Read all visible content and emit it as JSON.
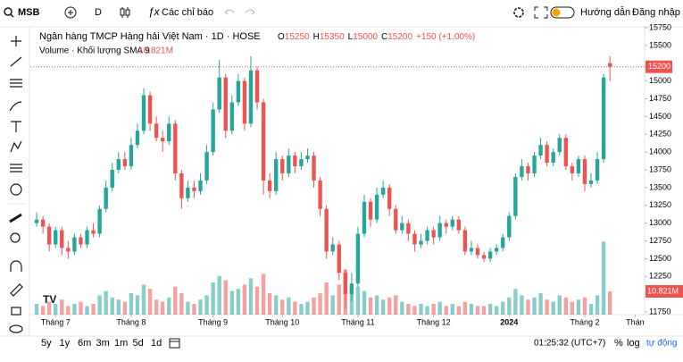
{
  "toolbar": {
    "symbol": "MSB",
    "interval": "D",
    "indicators": "Các chỉ báo",
    "guide": "Hướng dẫn",
    "login": "Đăng nhập"
  },
  "chart_data": {
    "type": "candlestick",
    "title": "Ngân hàng TMCP Hàng hải Việt Nam · 1D · HOSE",
    "ohlc_labels": [
      "O",
      "H",
      "L",
      "C"
    ],
    "change_label": "+150 (+1.00%)",
    "up_color": "#26a69a",
    "down_color": "#ef5350",
    "ohlc": [
      [
        13000,
        13150,
        12950,
        13050
      ],
      [
        13050,
        13100,
        12850,
        12950
      ],
      [
        12950,
        13000,
        12600,
        12700
      ],
      [
        12700,
        12950,
        12650,
        12900
      ],
      [
        12900,
        12950,
        12550,
        12650
      ],
      [
        12650,
        12750,
        12500,
        12600
      ],
      [
        12600,
        12850,
        12550,
        12800
      ],
      [
        12800,
        12850,
        12650,
        12700
      ],
      [
        12700,
        12950,
        12650,
        12900
      ],
      [
        12900,
        13000,
        12800,
        12850
      ],
      [
        12850,
        13250,
        12800,
        13200
      ],
      [
        13200,
        13600,
        13150,
        13500
      ],
      [
        13500,
        13850,
        13450,
        13750
      ],
      [
        13750,
        14000,
        13700,
        13900
      ],
      [
        13900,
        14000,
        13750,
        13800
      ],
      [
        13800,
        14200,
        13750,
        14100
      ],
      [
        14100,
        14400,
        14050,
        14300
      ],
      [
        14300,
        14900,
        14250,
        14800
      ],
      [
        14800,
        14850,
        14300,
        14400
      ],
      [
        14400,
        14500,
        14150,
        14200
      ],
      [
        14200,
        14300,
        14000,
        14150
      ],
      [
        14150,
        14500,
        14100,
        14400
      ],
      [
        14400,
        14450,
        13600,
        13700
      ],
      [
        13700,
        13750,
        13200,
        13350
      ],
      [
        13350,
        13600,
        13300,
        13500
      ],
      [
        13500,
        13600,
        13350,
        13450
      ],
      [
        13450,
        13700,
        13400,
        13600
      ],
      [
        13600,
        14100,
        13550,
        14000
      ],
      [
        14000,
        14700,
        13950,
        14600
      ],
      [
        14600,
        15300,
        14550,
        15050
      ],
      [
        15050,
        15100,
        14200,
        14300
      ],
      [
        14300,
        14800,
        14250,
        14700
      ],
      [
        14700,
        15100,
        14650,
        15000
      ],
      [
        15000,
        15050,
        14300,
        14400
      ],
      [
        14400,
        15350,
        14350,
        15150
      ],
      [
        15150,
        15200,
        14600,
        14700
      ],
      [
        14700,
        14750,
        13400,
        13600
      ],
      [
        13600,
        13700,
        13350,
        13450
      ],
      [
        13450,
        14000,
        13400,
        13900
      ],
      [
        13900,
        13950,
        13600,
        13700
      ],
      [
        13700,
        14050,
        13650,
        13950
      ],
      [
        13950,
        14000,
        13700,
        13800
      ],
      [
        13800,
        14000,
        13750,
        13900
      ],
      [
        13900,
        14050,
        13850,
        13950
      ],
      [
        13950,
        14000,
        13500,
        13600
      ],
      [
        13600,
        13650,
        13100,
        13200
      ],
      [
        13200,
        13250,
        12500,
        12600
      ],
      [
        12600,
        12800,
        12550,
        12700
      ],
      [
        12700,
        12750,
        12200,
        12300
      ],
      [
        12300,
        12350,
        11800,
        12000
      ],
      [
        12000,
        12300,
        11900,
        12150
      ],
      [
        12150,
        12950,
        12100,
        12850
      ],
      [
        12850,
        13400,
        12800,
        13300
      ],
      [
        13300,
        13350,
        12950,
        13050
      ],
      [
        13050,
        13500,
        13000,
        13400
      ],
      [
        13400,
        13600,
        13350,
        13500
      ],
      [
        13500,
        13550,
        13100,
        13200
      ],
      [
        13200,
        13250,
        12850,
        12900
      ],
      [
        12900,
        13100,
        12850,
        13000
      ],
      [
        13000,
        13050,
        12750,
        12850
      ],
      [
        12850,
        12900,
        12600,
        12700
      ],
      [
        12700,
        12850,
        12650,
        12750
      ],
      [
        12750,
        12950,
        12700,
        12900
      ],
      [
        12900,
        12950,
        12700,
        12800
      ],
      [
        12800,
        13100,
        12750,
        13000
      ],
      [
        13000,
        13050,
        12850,
        12950
      ],
      [
        12950,
        13100,
        12900,
        13050
      ],
      [
        13050,
        13100,
        12850,
        12900
      ],
      [
        12900,
        12950,
        12550,
        12600
      ],
      [
        12600,
        12750,
        12550,
        12650
      ],
      [
        12650,
        12700,
        12500,
        12550
      ],
      [
        12550,
        12600,
        12450,
        12500
      ],
      [
        12500,
        12650,
        12450,
        12600
      ],
      [
        12600,
        12700,
        12550,
        12650
      ],
      [
        12650,
        12850,
        12600,
        12800
      ],
      [
        12800,
        13150,
        12750,
        13100
      ],
      [
        13100,
        13700,
        13050,
        13650
      ],
      [
        13650,
        13900,
        13600,
        13800
      ],
      [
        13800,
        13850,
        13600,
        13700
      ],
      [
        13700,
        14000,
        13650,
        13950
      ],
      [
        13950,
        14200,
        13900,
        14100
      ],
      [
        14100,
        14150,
        13800,
        13850
      ],
      [
        13850,
        14050,
        13800,
        14000
      ],
      [
        14000,
        14250,
        13950,
        14200
      ],
      [
        14200,
        14250,
        13750,
        13800
      ],
      [
        13800,
        13850,
        13600,
        13700
      ],
      [
        13700,
        13950,
        13650,
        13900
      ],
      [
        13900,
        13950,
        13450,
        13550
      ],
      [
        13550,
        13700,
        13500,
        13600
      ],
      [
        13600,
        14000,
        13550,
        13900
      ],
      [
        13900,
        15100,
        13850,
        15050
      ],
      [
        15250,
        15350,
        15000,
        15200
      ]
    ],
    "volume": {
      "name": "Volume · Khối lượng SMA 9",
      "last_label": "10.821M",
      "ylim": [
        0,
        40
      ],
      "values": [
        5,
        4,
        6,
        5,
        7,
        4,
        5,
        6,
        4,
        5,
        9,
        11,
        8,
        7,
        6,
        10,
        9,
        14,
        12,
        7,
        6,
        8,
        13,
        10,
        6,
        5,
        7,
        9,
        15,
        18,
        16,
        11,
        12,
        14,
        17,
        13,
        19,
        10,
        9,
        7,
        8,
        6,
        5,
        6,
        8,
        10,
        15,
        9,
        14,
        21,
        12,
        13,
        11,
        8,
        9,
        7,
        8,
        9,
        6,
        5,
        4,
        5,
        4,
        5,
        6,
        4,
        5,
        4,
        6,
        5,
        4,
        4,
        5,
        4,
        6,
        8,
        12,
        9,
        7,
        8,
        10,
        7,
        6,
        9,
        8,
        6,
        7,
        8,
        5,
        9,
        34,
        10.821
      ]
    },
    "ylim": [
      11750,
      15750
    ],
    "yticks": [
      11750,
      12250,
      12500,
      12750,
      13000,
      13250,
      13500,
      13750,
      14000,
      14250,
      14500,
      14750,
      15000,
      15500,
      15750
    ],
    "xlim": [
      -1,
      96.5
    ],
    "xticks": [
      {
        "value": 3,
        "label": "Tháng 7"
      },
      {
        "value": 15,
        "label": "Tháng 8"
      },
      {
        "value": 28,
        "label": "Tháng 9"
      },
      {
        "value": 39,
        "label": "Tháng 10"
      },
      {
        "value": 51,
        "label": "Tháng 11"
      },
      {
        "value": 63,
        "label": "Tháng 12"
      },
      {
        "value": 75,
        "label": "2024"
      },
      {
        "value": 87,
        "label": "Tháng 2"
      },
      {
        "value": 95,
        "label": "Thán"
      }
    ],
    "grid": false,
    "last_price_line": true
  },
  "range_buttons": [
    "5y",
    "1y",
    "6m",
    "3m",
    "1m",
    "5d",
    "1d"
  ],
  "footer": {
    "time": "01:25:32 (UTC+7)",
    "percent": "%",
    "log": "log",
    "auto": "tự động"
  }
}
